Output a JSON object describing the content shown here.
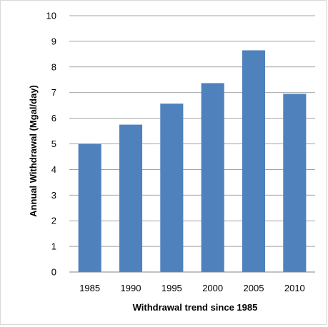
{
  "chart_data": {
    "type": "bar",
    "title": "",
    "xlabel": "Withdrawal trend since 1985",
    "ylabel": "Annual Withdrawal (Mgal/day)",
    "categories": [
      "1985",
      "1990",
      "1995",
      "2000",
      "2005",
      "2010"
    ],
    "values": [
      5.0,
      5.75,
      6.57,
      7.37,
      8.65,
      6.95
    ],
    "ylim": [
      0,
      10
    ],
    "yticks": [
      "0",
      "1",
      "2",
      "3",
      "4",
      "5",
      "6",
      "7",
      "8",
      "9",
      "10"
    ],
    "grid": true,
    "legend": "none",
    "bar_color": "#4f81bd",
    "gridline_color": "#868686"
  }
}
